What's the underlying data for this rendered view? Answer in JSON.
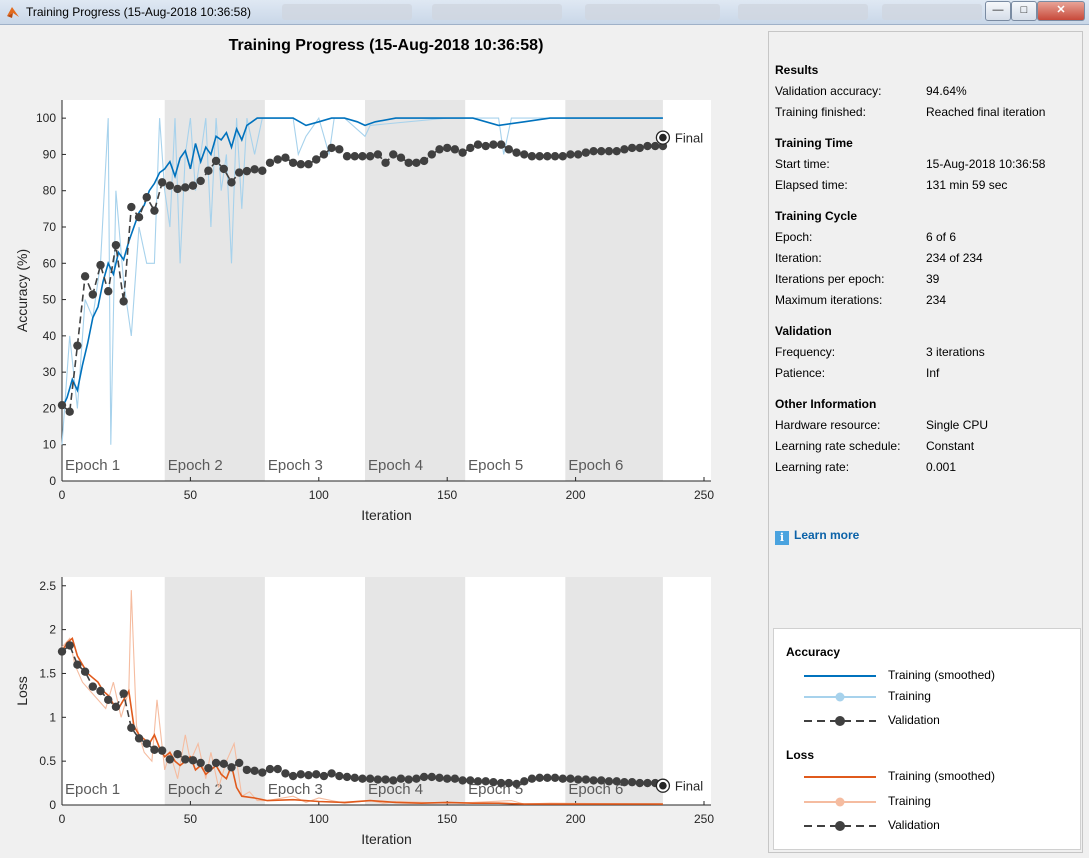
{
  "window": {
    "title": "Training Progress (15-Aug-2018 10:36:58)",
    "buttons": {
      "minimize": "—",
      "maximize": "□",
      "close": "✕"
    }
  },
  "colors": {
    "acc_smooth": "#0072bd",
    "acc_raw": "#a7d2ec",
    "loss_smooth": "#e05a1c",
    "loss_raw": "#f5bca0",
    "validation": "#404040",
    "epoch_shade": "#e6e6e6"
  },
  "results_panel": {
    "sections": [
      {
        "title": "Results",
        "rows": [
          {
            "key": "Validation accuracy:",
            "value": "94.64%"
          },
          {
            "key": "Training finished:",
            "value": "Reached final iteration"
          }
        ]
      },
      {
        "title": "Training Time",
        "rows": [
          {
            "key": "Start time:",
            "value": "15-Aug-2018 10:36:58"
          },
          {
            "key": "Elapsed time:",
            "value": "131 min 59 sec"
          }
        ]
      },
      {
        "title": "Training Cycle",
        "rows": [
          {
            "key": "Epoch:",
            "value": "6 of 6"
          },
          {
            "key": "Iteration:",
            "value": "234 of 234"
          },
          {
            "key": "Iterations per epoch:",
            "value": "39"
          },
          {
            "key": "Maximum iterations:",
            "value": "234"
          }
        ]
      },
      {
        "title": "Validation",
        "rows": [
          {
            "key": "Frequency:",
            "value": "3 iterations"
          },
          {
            "key": "Patience:",
            "value": "Inf"
          }
        ]
      },
      {
        "title": "Other Information",
        "rows": [
          {
            "key": "Hardware resource:",
            "value": "Single CPU"
          },
          {
            "key": "Learning rate schedule:",
            "value": "Constant"
          },
          {
            "key": "Learning rate:",
            "value": "0.001"
          }
        ]
      }
    ],
    "learn_more": "Learn more"
  },
  "legend": {
    "accuracy_title": "Accuracy",
    "loss_title": "Loss",
    "training_smoothed": "Training (smoothed)",
    "training": "Training",
    "validation": "Validation"
  },
  "chart_data": [
    {
      "type": "line",
      "title": "Training Progress (15-Aug-2018 10:36:58)",
      "xlabel": "Iteration",
      "ylabel": "Accuracy (%)",
      "xlim": [
        0,
        250
      ],
      "ylim": [
        0,
        105
      ],
      "xticks": [
        0,
        50,
        100,
        150,
        200,
        250
      ],
      "yticks": [
        0,
        10,
        20,
        30,
        40,
        50,
        60,
        70,
        80,
        90,
        100
      ],
      "epoch_labels": [
        "Epoch 1",
        "Epoch 2",
        "Epoch 3",
        "Epoch 4",
        "Epoch 5",
        "Epoch 6"
      ],
      "epoch_bounds": [
        0,
        40,
        79,
        118,
        157,
        196,
        234
      ],
      "final_label": "Final",
      "final_value": 94.64,
      "series": [
        {
          "name": "Training (smoothed)",
          "x": [
            0,
            2,
            4,
            6,
            8,
            10,
            12,
            14,
            16,
            18,
            20,
            22,
            24,
            26,
            28,
            30,
            32,
            34,
            36,
            38,
            40,
            42,
            44,
            46,
            48,
            50,
            52,
            54,
            56,
            58,
            60,
            62,
            64,
            66,
            68,
            70,
            72,
            74,
            76,
            80,
            85,
            90,
            95,
            100,
            105,
            110,
            115,
            118,
            122,
            130,
            140,
            150,
            160,
            170,
            180,
            190,
            200,
            210,
            220,
            234
          ],
          "y": [
            20,
            23,
            28,
            25,
            32,
            38,
            45,
            48,
            55,
            60,
            57,
            63,
            61,
            66,
            70,
            74,
            76,
            80,
            82,
            85,
            86,
            88,
            84,
            89,
            91,
            86,
            93,
            88,
            92,
            90,
            95,
            94,
            96,
            92,
            97,
            94,
            98,
            99,
            100,
            100,
            100,
            100,
            98,
            99,
            100,
            100,
            99,
            98,
            99,
            100,
            100,
            100,
            100,
            98,
            99,
            100,
            100,
            100,
            100,
            100
          ]
        },
        {
          "name": "Training",
          "x": [
            0,
            3,
            6,
            9,
            12,
            15,
            18,
            19,
            21,
            24,
            27,
            30,
            33,
            36,
            38,
            40,
            42,
            44,
            46,
            48,
            50,
            52,
            54,
            56,
            58,
            60,
            62,
            64,
            66,
            68,
            70,
            72,
            75,
            78,
            80,
            90,
            92,
            95,
            100,
            104,
            106,
            110,
            118,
            120,
            150,
            170,
            172,
            175,
            234
          ],
          "y": [
            10,
            40,
            20,
            50,
            45,
            60,
            100,
            10,
            80,
            55,
            40,
            70,
            60,
            60,
            100,
            80,
            70,
            100,
            60,
            90,
            100,
            80,
            90,
            100,
            70,
            100,
            80,
            90,
            60,
            100,
            75,
            100,
            90,
            100,
            100,
            100,
            90,
            95,
            100,
            90,
            100,
            100,
            95,
            98,
            100,
            100,
            90,
            100,
            100
          ]
        },
        {
          "name": "Validation",
          "x": [
            0,
            3,
            6,
            9,
            12,
            15,
            18,
            21,
            24,
            27,
            30,
            33,
            36,
            39,
            42,
            45,
            48,
            51,
            54,
            57,
            60,
            63,
            66,
            69,
            72,
            75,
            78,
            81,
            84,
            87,
            90,
            93,
            96,
            99,
            102,
            105,
            108,
            111,
            114,
            117,
            120,
            123,
            126,
            129,
            132,
            135,
            138,
            141,
            144,
            147,
            150,
            153,
            156,
            159,
            162,
            165,
            168,
            171,
            174,
            177,
            180,
            183,
            186,
            189,
            192,
            195,
            198,
            201,
            204,
            207,
            210,
            213,
            216,
            219,
            222,
            225,
            228,
            231,
            234
          ],
          "y": [
            20.9,
            19.1,
            37.3,
            56.4,
            51.4,
            59.5,
            52.3,
            65.0,
            49.5,
            75.5,
            72.7,
            78.2,
            74.5,
            82.3,
            81.4,
            80.5,
            80.9,
            81.4,
            82.7,
            85.5,
            88.2,
            86.0,
            82.3,
            85.0,
            85.4,
            85.9,
            85.5,
            87.7,
            88.6,
            89.1,
            87.7,
            87.3,
            87.3,
            88.6,
            90.0,
            91.8,
            91.4,
            89.5,
            89.5,
            89.5,
            89.5,
            90.0,
            87.7,
            90.0,
            89.1,
            87.7,
            87.7,
            88.2,
            90.0,
            91.4,
            91.8,
            91.4,
            90.5,
            91.8,
            92.7,
            92.3,
            92.7,
            92.7,
            91.4,
            90.5,
            90.0,
            89.5,
            89.5,
            89.5,
            89.5,
            89.5,
            90.0,
            90.0,
            90.5,
            90.9,
            90.9,
            90.9,
            90.9,
            91.4,
            91.8,
            91.8,
            92.3,
            92.3,
            92.3
          ]
        }
      ]
    },
    {
      "type": "line",
      "xlabel": "Iteration",
      "ylabel": "Loss",
      "xlim": [
        0,
        250
      ],
      "ylim": [
        0,
        2.6
      ],
      "xticks": [
        0,
        50,
        100,
        150,
        200,
        250
      ],
      "yticks": [
        0,
        0.5,
        1,
        1.5,
        2,
        2.5
      ],
      "epoch_labels": [
        "Epoch 1",
        "Epoch 2",
        "Epoch 3",
        "Epoch 4",
        "Epoch 5",
        "Epoch 6"
      ],
      "epoch_bounds": [
        0,
        40,
        79,
        118,
        157,
        196,
        234
      ],
      "final_label": "Final",
      "final_value": 0.22,
      "series": [
        {
          "name": "Training (smoothed)",
          "x": [
            0,
            2,
            4,
            6,
            8,
            10,
            12,
            14,
            16,
            18,
            20,
            22,
            24,
            26,
            28,
            30,
            32,
            34,
            36,
            38,
            40,
            42,
            44,
            46,
            48,
            50,
            52,
            54,
            56,
            58,
            60,
            62,
            64,
            66,
            68,
            70,
            75,
            80,
            90,
            100,
            110,
            120,
            130,
            140,
            150,
            160,
            170,
            180,
            190,
            200,
            210,
            220,
            234
          ],
          "y": [
            1.75,
            1.85,
            1.9,
            1.7,
            1.6,
            1.5,
            1.45,
            1.4,
            1.3,
            1.25,
            1.15,
            1.1,
            1.2,
            1.3,
            0.9,
            0.8,
            0.75,
            0.7,
            0.8,
            0.65,
            0.55,
            0.6,
            0.5,
            0.45,
            0.5,
            0.55,
            0.4,
            0.45,
            0.35,
            0.4,
            0.45,
            0.35,
            0.3,
            0.45,
            0.2,
            0.1,
            0.08,
            0.05,
            0.06,
            0.04,
            0.03,
            0.05,
            0.03,
            0.02,
            0.03,
            0.02,
            0.02,
            0.01,
            0.01,
            0.01,
            0.01,
            0.01,
            0.01
          ]
        },
        {
          "name": "Training",
          "x": [
            0,
            3,
            5,
            8,
            11,
            14,
            17,
            20,
            23,
            26,
            27,
            29,
            32,
            35,
            37,
            40,
            42,
            45,
            48,
            50,
            53,
            56,
            58,
            61,
            64,
            67,
            70,
            73,
            76,
            80,
            90,
            95,
            100,
            110,
            120,
            125,
            130,
            150,
            160,
            175,
            180,
            190,
            234
          ],
          "y": [
            1.8,
            1.9,
            1.6,
            1.4,
            1.3,
            1.2,
            1.1,
            1.4,
            1.0,
            1.3,
            2.45,
            0.9,
            0.6,
            0.5,
            1.2,
            0.4,
            0.6,
            0.3,
            0.8,
            0.5,
            0.7,
            0.3,
            0.6,
            0.2,
            0.5,
            0.7,
            0.1,
            0.15,
            0.05,
            0.05,
            0.1,
            0.03,
            0.08,
            0.02,
            0.05,
            0.02,
            0.04,
            0.02,
            0.03,
            0.05,
            0.01,
            0.02,
            0.01
          ]
        },
        {
          "name": "Validation",
          "x": [
            0,
            3,
            6,
            9,
            12,
            15,
            18,
            21,
            24,
            27,
            30,
            33,
            36,
            39,
            42,
            45,
            48,
            51,
            54,
            57,
            60,
            63,
            66,
            69,
            72,
            75,
            78,
            81,
            84,
            87,
            90,
            93,
            96,
            99,
            102,
            105,
            108,
            111,
            114,
            117,
            120,
            123,
            126,
            129,
            132,
            135,
            138,
            141,
            144,
            147,
            150,
            153,
            156,
            159,
            162,
            165,
            168,
            171,
            174,
            177,
            180,
            183,
            186,
            189,
            192,
            195,
            198,
            201,
            204,
            207,
            210,
            213,
            216,
            219,
            222,
            225,
            228,
            231,
            234
          ],
          "y": [
            1.75,
            1.82,
            1.6,
            1.52,
            1.35,
            1.3,
            1.2,
            1.12,
            1.27,
            0.88,
            0.76,
            0.7,
            0.63,
            0.62,
            0.52,
            0.58,
            0.52,
            0.51,
            0.48,
            0.42,
            0.48,
            0.47,
            0.43,
            0.48,
            0.4,
            0.39,
            0.37,
            0.41,
            0.41,
            0.36,
            0.33,
            0.35,
            0.34,
            0.35,
            0.33,
            0.36,
            0.33,
            0.32,
            0.31,
            0.3,
            0.3,
            0.29,
            0.29,
            0.28,
            0.3,
            0.29,
            0.3,
            0.32,
            0.32,
            0.31,
            0.3,
            0.3,
            0.28,
            0.28,
            0.27,
            0.27,
            0.26,
            0.25,
            0.25,
            0.24,
            0.27,
            0.3,
            0.31,
            0.31,
            0.31,
            0.3,
            0.3,
            0.29,
            0.29,
            0.28,
            0.28,
            0.27,
            0.27,
            0.26,
            0.26,
            0.25,
            0.25,
            0.25,
            0.24
          ]
        }
      ]
    }
  ]
}
